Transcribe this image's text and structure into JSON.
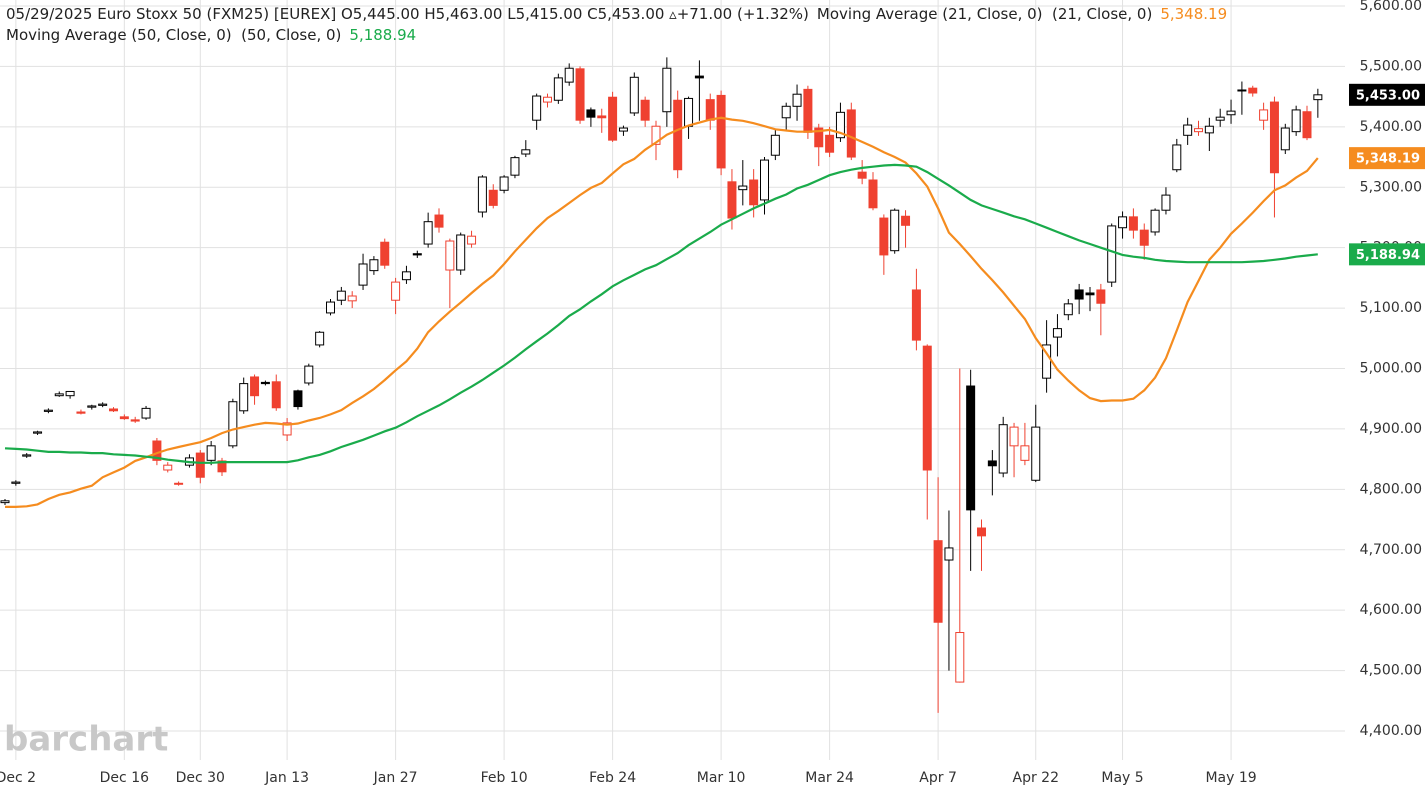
{
  "chart_data": {
    "type": "candlestick",
    "header": "05/29/2025 Euro Stoxx 50 (FXM25) [EUREX] O5,445.00 H5,463.00 L5,415.00 C5,453.00 ▵+71.00 (+1.32%)",
    "watermark": "barchart",
    "categories": [
      null,
      "Dec 2",
      null,
      null,
      null,
      null,
      null,
      null,
      null,
      null,
      null,
      "Dec 16",
      null,
      null,
      null,
      null,
      null,
      null,
      "Dec 30",
      null,
      null,
      null,
      null,
      null,
      null,
      null,
      "Jan 13",
      null,
      null,
      null,
      null,
      null,
      null,
      null,
      null,
      null,
      "Jan 27",
      null,
      null,
      null,
      null,
      null,
      null,
      null,
      null,
      null,
      "Feb 10",
      null,
      null,
      null,
      null,
      null,
      null,
      null,
      null,
      null,
      "Feb 24",
      null,
      null,
      null,
      null,
      null,
      null,
      null,
      null,
      null,
      "Mar 10",
      null,
      null,
      null,
      null,
      null,
      null,
      null,
      null,
      null,
      "Mar 24",
      null,
      null,
      null,
      null,
      null,
      null,
      null,
      null,
      null,
      "Apr 7",
      null,
      null,
      null,
      null,
      null,
      null,
      null,
      null,
      "Apr 22",
      null,
      null,
      null,
      null,
      null,
      null,
      null,
      "May 5",
      null,
      null,
      null,
      null,
      null,
      null,
      null,
      null,
      null,
      "May 19",
      null,
      null,
      null,
      null,
      null,
      null,
      null,
      null
    ],
    "open": [
      4778,
      4810,
      4855,
      4893,
      4929,
      4955,
      4955,
      4928,
      4936,
      4939,
      4933,
      4920,
      4915,
      4918,
      4880,
      4832,
      4810,
      4840,
      4860,
      4848,
      4847,
      4872,
      4930,
      4986,
      4977,
      4978,
      4890,
      4963,
      4976,
      5039,
      5092,
      5113,
      5112,
      5138,
      5162,
      5209,
      5113,
      5147,
      5190,
      5206,
      5254,
      5163,
      5163,
      5206,
      5259,
      5295,
      5295,
      5320,
      5355,
      5411,
      5441,
      5444,
      5474,
      5496,
      5428,
      5418,
      5449,
      5393,
      5423,
      5444,
      5371,
      5425,
      5444,
      5401,
      5484,
      5445,
      5452,
      5309,
      5296,
      5312,
      5279,
      5353,
      5415,
      5434,
      5462,
      5398,
      5386,
      5382,
      5428,
      5325,
      5312,
      5249,
      5195,
      5252,
      5130,
      5037,
      4715,
      4683,
      4481,
      4971,
      4736,
      4847,
      4827,
      4872,
      4848,
      4815,
      4984,
      5052,
      5089,
      5130,
      5125,
      5130,
      5143,
      5233,
      5251,
      5229,
      5226,
      5262,
      5329,
      5386,
      5392,
      5390,
      5411,
      5420,
      5461,
      5464,
      5411,
      5441,
      5362,
      5392,
      5425,
      5445
    ],
    "high": [
      4784,
      4815,
      4860,
      4897,
      4934,
      4962,
      4962,
      4932,
      4940,
      4944,
      4936,
      4924,
      4920,
      4938,
      4885,
      4845,
      4813,
      4858,
      4865,
      4880,
      4852,
      4950,
      4985,
      4990,
      4980,
      4990,
      4918,
      4965,
      5008,
      5062,
      5115,
      5135,
      5128,
      5190,
      5186,
      5215,
      5150,
      5170,
      5195,
      5258,
      5265,
      5215,
      5225,
      5228,
      5320,
      5305,
      5320,
      5352,
      5378,
      5455,
      5455,
      5488,
      5505,
      5500,
      5432,
      5430,
      5458,
      5402,
      5490,
      5450,
      5410,
      5515,
      5460,
      5450,
      5510,
      5455,
      5460,
      5330,
      5345,
      5330,
      5350,
      5395,
      5440,
      5470,
      5468,
      5405,
      5400,
      5440,
      5440,
      5345,
      5325,
      5255,
      5265,
      5262,
      5165,
      5040,
      4820,
      4765,
      5000,
      4998,
      4750,
      4865,
      4920,
      4910,
      4910,
      4940,
      5080,
      5090,
      5115,
      5140,
      5135,
      5140,
      5240,
      5260,
      5265,
      5240,
      5265,
      5300,
      5380,
      5415,
      5410,
      5415,
      5430,
      5445,
      5475,
      5468,
      5440,
      5450,
      5405,
      5435,
      5435,
      5463
    ],
    "low": [
      4774,
      4806,
      4852,
      4890,
      4926,
      4953,
      4950,
      4924,
      4932,
      4936,
      4928,
      4915,
      4910,
      4915,
      4840,
      4828,
      4806,
      4836,
      4810,
      4840,
      4822,
      4868,
      4925,
      4940,
      4972,
      4930,
      4880,
      4932,
      4972,
      5035,
      5088,
      5105,
      5100,
      5130,
      5155,
      5165,
      5090,
      5140,
      5183,
      5200,
      5225,
      5100,
      5155,
      5200,
      5250,
      5265,
      5290,
      5315,
      5350,
      5395,
      5432,
      5438,
      5468,
      5405,
      5400,
      5390,
      5375,
      5385,
      5418,
      5400,
      5345,
      5400,
      5315,
      5380,
      5410,
      5395,
      5320,
      5230,
      5270,
      5250,
      5255,
      5345,
      5395,
      5410,
      5380,
      5335,
      5350,
      5375,
      5345,
      5305,
      5262,
      5155,
      5190,
      5200,
      5030,
      4750,
      4430,
      4500,
      4480,
      4665,
      4665,
      4790,
      4820,
      4820,
      4840,
      4812,
      4960,
      5020,
      5080,
      5090,
      5095,
      5055,
      5135,
      5215,
      5215,
      5180,
      5220,
      5255,
      5325,
      5370,
      5385,
      5360,
      5400,
      5405,
      5420,
      5450,
      5395,
      5250,
      5355,
      5385,
      5378,
      5415
    ],
    "close": [
      4781,
      4812,
      4857,
      4895,
      4931,
      4958,
      4962,
      4926,
      4938,
      4941,
      4930,
      4917,
      4913,
      4934,
      4848,
      4840,
      4809,
      4852,
      4820,
      4872,
      4829,
      4945,
      4975,
      4955,
      4975,
      4935,
      4910,
      4937,
      5004,
      5060,
      5110,
      5128,
      5120,
      5173,
      5180,
      5171,
      5143,
      5160,
      5188,
      5243,
      5234,
      5211,
      5221,
      5219,
      5317,
      5270,
      5317,
      5349,
      5362,
      5451,
      5449,
      5481,
      5497,
      5411,
      5416,
      5415,
      5378,
      5398,
      5482,
      5411,
      5401,
      5497,
      5329,
      5447,
      5481,
      5411,
      5332,
      5249,
      5302,
      5271,
      5345,
      5386,
      5434,
      5454,
      5391,
      5367,
      5358,
      5424,
      5350,
      5315,
      5266,
      5188,
      5262,
      5237,
      5047,
      4832,
      4580,
      4703,
      4563,
      4766,
      4723,
      4839,
      4907,
      4903,
      4872,
      4903,
      5039,
      5066,
      5107,
      5115,
      5122,
      5108,
      5236,
      5251,
      5229,
      5204,
      5262,
      5287,
      5370,
      5403,
      5397,
      5401,
      5416,
      5426,
      5460,
      5456,
      5428,
      5324,
      5398,
      5428,
      5382,
      5453
    ],
    "close_label": "5,453.00",
    "rising_color": "#000000",
    "falling_color": "#ef4130",
    "series": [
      {
        "name": "Moving Average (21, Close, 0)  (21, Close, 0)",
        "color": "#f58c1f",
        "last_label": "5,348.19",
        "values": [
          4771,
          4771,
          4772,
          4775,
          4784,
          4791,
          4795,
          4801,
          4806,
          4820,
          4828,
          4836,
          4847,
          4853,
          4860,
          4866,
          4870,
          4874,
          4878,
          4885,
          4893,
          4899,
          4903,
          4907,
          4910,
          4909,
          4907,
          4909,
          4914,
          4918,
          4924,
          4931,
          4943,
          4954,
          4966,
          4981,
          4997,
          5012,
          5033,
          5060,
          5078,
          5094,
          5109,
          5125,
          5140,
          5154,
          5173,
          5194,
          5213,
          5232,
          5249,
          5261,
          5274,
          5287,
          5299,
          5307,
          5323,
          5338,
          5347,
          5362,
          5374,
          5387,
          5395,
          5402,
          5407,
          5412,
          5415,
          5412,
          5410,
          5406,
          5401,
          5396,
          5394,
          5392,
          5392,
          5393,
          5395,
          5390,
          5383,
          5375,
          5367,
          5358,
          5350,
          5341,
          5323,
          5301,
          5265,
          5225,
          5206,
          5186,
          5165,
          5146,
          5126,
          5104,
          5082,
          5050,
          5025,
          4998,
          4980,
          4964,
          4951,
          4946,
          4947,
          4947,
          4950,
          4964,
          4985,
          5017,
          5063,
          5110,
          5145,
          5180,
          5200,
          5223,
          5240,
          5258,
          5277,
          5295,
          5303,
          5316,
          5327,
          5348.19
        ]
      },
      {
        "name": "Moving Average (50, Close, 0)  (50, Close, 0)",
        "color": "#1aab4b",
        "last_label": "5,188.94",
        "values": [
          4868,
          4867,
          4866,
          4864,
          4862,
          4862,
          4861,
          4861,
          4860,
          4860,
          4858,
          4857,
          4856,
          4854,
          4852,
          4849,
          4847,
          4845,
          4844,
          4844,
          4845,
          4845,
          4845,
          4845,
          4845,
          4845,
          4845,
          4848,
          4853,
          4857,
          4863,
          4870,
          4876,
          4882,
          4889,
          4896,
          4902,
          4911,
          4921,
          4930,
          4939,
          4949,
          4960,
          4970,
          4981,
          4993,
          5005,
          5018,
          5032,
          5045,
          5058,
          5072,
          5087,
          5098,
          5111,
          5123,
          5136,
          5146,
          5155,
          5164,
          5171,
          5181,
          5191,
          5204,
          5215,
          5226,
          5238,
          5247,
          5256,
          5265,
          5273,
          5281,
          5288,
          5298,
          5304,
          5312,
          5320,
          5325,
          5329,
          5332,
          5334,
          5336,
          5337,
          5336,
          5334,
          5325,
          5314,
          5303,
          5291,
          5279,
          5270,
          5264,
          5258,
          5252,
          5247,
          5240,
          5233,
          5226,
          5219,
          5212,
          5206,
          5200,
          5194,
          5188,
          5185,
          5183,
          5180,
          5178,
          5177,
          5176,
          5176,
          5176,
          5176,
          5176,
          5176,
          5177,
          5178,
          5180,
          5182,
          5185,
          5187,
          5188.94
        ]
      }
    ],
    "ylim": [
      4400,
      5600
    ],
    "yticks": [
      {
        "value": 4400,
        "label": "4,400.00"
      },
      {
        "value": 4500,
        "label": "4,500.00"
      },
      {
        "value": 4600,
        "label": "4,600.00"
      },
      {
        "value": 4700,
        "label": "4,700.00"
      },
      {
        "value": 4800,
        "label": "4,800.00"
      },
      {
        "value": 4900,
        "label": "4,900.00"
      },
      {
        "value": 5000,
        "label": "5,000.00"
      },
      {
        "value": 5100,
        "label": "5,100.00"
      },
      {
        "value": 5200,
        "label": "5,200.00"
      },
      {
        "value": 5300,
        "label": "5,300.00"
      },
      {
        "value": 5400,
        "label": "5,400.00"
      },
      {
        "value": 5500,
        "label": "5,500.00"
      },
      {
        "value": 5600,
        "label": "5,600.00"
      }
    ],
    "grid": true
  }
}
